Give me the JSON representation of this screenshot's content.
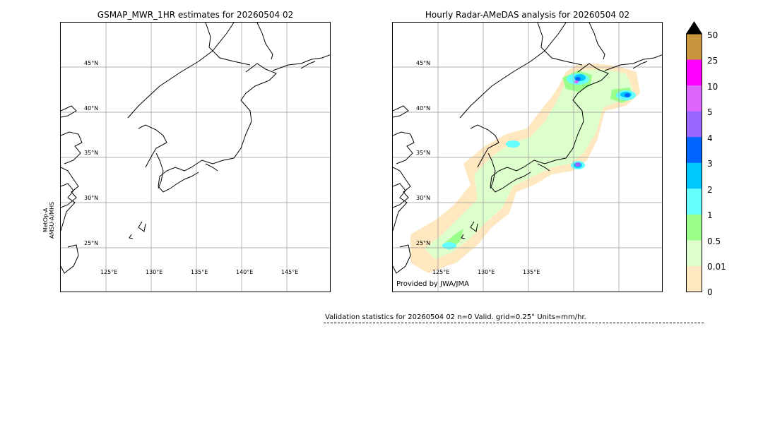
{
  "left_panel": {
    "title": "GSMAP_MWR_1HR estimates for 20260504 02",
    "satellite_label_line1": "MetOp-A",
    "satellite_label_line2": "AMSU-A/MHS",
    "lat_labels": [
      "45°N",
      "40°N",
      "35°N",
      "30°N",
      "25°N"
    ],
    "lon_labels": [
      "125°E",
      "130°E",
      "135°E",
      "140°E",
      "145°E"
    ]
  },
  "right_panel": {
    "title": "Hourly Radar-AMeDAS analysis for 20260504 02",
    "lat_labels": [
      "45°N",
      "40°N",
      "35°N",
      "30°N",
      "25°N"
    ],
    "lon_labels": [
      "125°E",
      "130°E",
      "135°E"
    ],
    "credit": "Provided by JWA/JMA"
  },
  "colorbar": {
    "labels": [
      "50",
      "25",
      "10",
      "5",
      "4",
      "3",
      "2",
      "1",
      "0.5",
      "0.01",
      "0"
    ],
    "colors": [
      "#c8963c",
      "#ff00ff",
      "#dd66ff",
      "#9966ff",
      "#0064ff",
      "#00c8ff",
      "#66ffff",
      "#99ff88",
      "#ddffcc",
      "#ffe8c0"
    ],
    "extend_color": "#000000"
  },
  "validation": {
    "text": "Validation statistics for 20260504 02  n=0 Valid. grid=0.25° Units=mm/hr."
  },
  "precip_colors": {
    "very_light": "#ffe8c0",
    "light": "#ddffcc",
    "moderate": "#99ff88",
    "cyan": "#66ffff",
    "sky": "#00c8ff",
    "blue": "#0064ff",
    "purple": "#9966ff",
    "magenta": "#dd66ff"
  }
}
